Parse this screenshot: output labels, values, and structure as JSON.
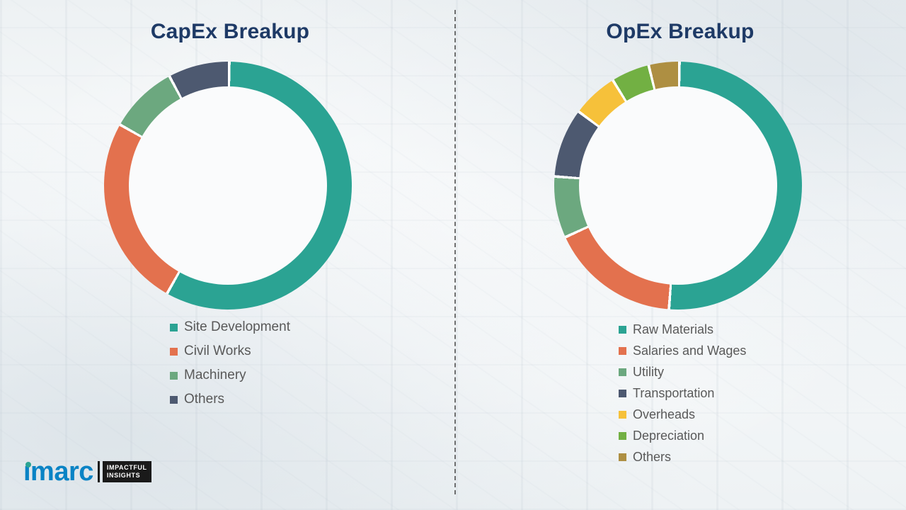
{
  "chart_data": [
    {
      "type": "pie",
      "donut": true,
      "title": "CapEx Breakup",
      "legend_position": "bottom",
      "segments": [
        {
          "label": "Site Development",
          "value": 58,
          "color": "#2BA393"
        },
        {
          "label": "Civil Works",
          "value": 25,
          "color": "#E3714E"
        },
        {
          "label": "Machinery",
          "value": 9,
          "color": "#6CA87F"
        },
        {
          "label": "Others",
          "value": 8,
          "color": "#4D5970"
        }
      ]
    },
    {
      "type": "pie",
      "donut": true,
      "title": "OpEx Breakup",
      "legend_position": "bottom",
      "segments": [
        {
          "label": "Raw Materials",
          "value": 51,
          "color": "#2BA393"
        },
        {
          "label": "Salaries and Wages",
          "value": 17,
          "color": "#E3714E"
        },
        {
          "label": "Utility",
          "value": 8,
          "color": "#6CA87F"
        },
        {
          "label": "Transportation",
          "value": 9,
          "color": "#4D5970"
        },
        {
          "label": "Overheads",
          "value": 6,
          "color": "#F6C13A"
        },
        {
          "label": "Depreciation",
          "value": 5,
          "color": "#72B043"
        },
        {
          "label": "Others",
          "value": 4,
          "color": "#AE8F42"
        }
      ]
    }
  ],
  "logo": {
    "brand": "imarc",
    "brand_color": "#0983C5",
    "dot_color": "#2BA393",
    "tagline_top": "IMPACTFUL",
    "tagline_bottom": "INSIGHTS"
  }
}
